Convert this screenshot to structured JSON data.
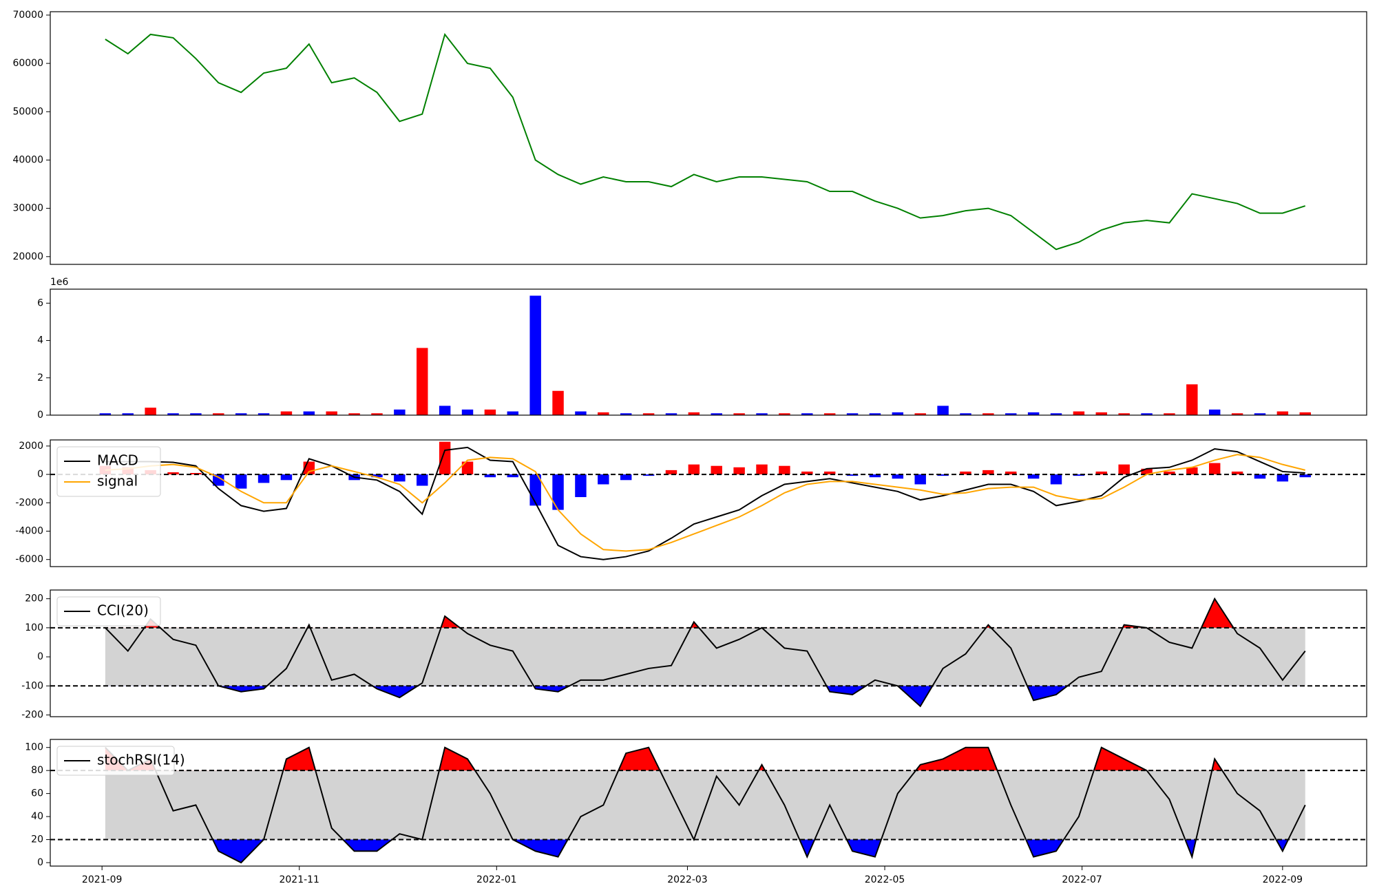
{
  "chart_data": [
    {
      "type": "line",
      "color": "green",
      "ylim": [
        18400,
        70700
      ],
      "yticks": [
        20000,
        30000,
        40000,
        50000,
        60000,
        70000
      ],
      "values": [
        65000,
        62000,
        66000,
        65300,
        61000,
        56000,
        54000,
        58000,
        59000,
        64000,
        56000,
        57000,
        54000,
        48000,
        49500,
        66000,
        60000,
        59000,
        53000,
        40000,
        37000,
        35000,
        36500,
        35500,
        35500,
        34500,
        37000,
        35500,
        36500,
        36500,
        36000,
        35500,
        33500,
        33500,
        31500,
        30000,
        28000,
        28500,
        29500,
        30000,
        28500,
        25000,
        21500,
        23000,
        25500,
        27000,
        27500,
        27000,
        33000,
        32000,
        31000,
        29000,
        29000,
        30500
      ]
    },
    {
      "type": "bar",
      "offset_label": "1e6",
      "ylim": [
        0,
        6.75
      ],
      "yticks": [
        0,
        2,
        4,
        6
      ],
      "values": [
        0.1,
        0.1,
        0.4,
        0.1,
        0.1,
        0.1,
        0.1,
        0.1,
        0.2,
        0.2,
        0.2,
        0.1,
        0.1,
        0.3,
        3.6,
        0.5,
        0.3,
        0.3,
        0.2,
        6.4,
        1.3,
        0.2,
        0.15,
        0.1,
        0.1,
        0.1,
        0.15,
        0.1,
        0.1,
        0.1,
        0.1,
        0.1,
        0.1,
        0.1,
        0.1,
        0.15,
        0.1,
        0.5,
        0.1,
        0.1,
        0.1,
        0.15,
        0.1,
        0.2,
        0.15,
        0.1,
        0.1,
        0.1,
        1.65,
        0.3,
        0.1,
        0.1,
        0.2,
        0.15
      ],
      "colors": [
        "blue",
        "blue",
        "red",
        "blue",
        "blue",
        "red",
        "blue",
        "blue",
        "red",
        "blue",
        "red",
        "red",
        "red",
        "blue",
        "red",
        "blue",
        "blue",
        "red",
        "blue",
        "blue",
        "red",
        "blue",
        "red",
        "blue",
        "red",
        "blue",
        "red",
        "blue",
        "red",
        "blue",
        "red",
        "blue",
        "red",
        "blue",
        "blue",
        "blue",
        "red",
        "blue",
        "blue",
        "red",
        "blue",
        "blue",
        "blue",
        "red",
        "red",
        "red",
        "blue",
        "red",
        "red",
        "blue",
        "red",
        "blue",
        "red",
        "red"
      ]
    },
    {
      "type": "macd",
      "ylim": [
        -6500,
        2430
      ],
      "yticks": [
        -6000,
        -4000,
        -2000,
        0,
        2000
      ],
      "levels": [
        0
      ],
      "series": [
        {
          "name": "MACD",
          "color": "black",
          "values": [
            900,
            900,
            900,
            850,
            600,
            -1000,
            -2200,
            -2600,
            -2400,
            1100,
            600,
            -200,
            -400,
            -1200,
            -2800,
            1700,
            1900,
            1000,
            900,
            -2000,
            -5000,
            -5800,
            -6000,
            -5800,
            -5400,
            -4500,
            -3500,
            -3000,
            -2500,
            -1500,
            -700,
            -500,
            -300,
            -600,
            -900,
            -1200,
            -1800,
            -1500,
            -1100,
            -700,
            -700,
            -1200,
            -2200,
            -1900,
            -1500,
            -200,
            400,
            500,
            1000,
            1800,
            1600,
            900,
            200,
            100
          ]
        },
        {
          "name": "signal",
          "color": "orange",
          "values": [
            300,
            400,
            600,
            700,
            500,
            -200,
            -1200,
            -2000,
            -2000,
            200,
            600,
            200,
            -200,
            -700,
            -2000,
            -600,
            1000,
            1200,
            1100,
            200,
            -2500,
            -4200,
            -5300,
            -5400,
            -5300,
            -4800,
            -4200,
            -3600,
            -3000,
            -2200,
            -1300,
            -700,
            -500,
            -500,
            -700,
            -900,
            -1100,
            -1400,
            -1300,
            -1000,
            -900,
            -900,
            -1500,
            -1800,
            -1700,
            -900,
            0,
            300,
            500,
            1000,
            1400,
            1200,
            700,
            300
          ]
        }
      ],
      "bars": {
        "values": [
          600,
          500,
          300,
          150,
          100,
          -800,
          -1000,
          -600,
          -400,
          900,
          0,
          -400,
          -200,
          -500,
          -800,
          2300,
          900,
          -200,
          -200,
          -2200,
          -2500,
          -1600,
          -700,
          -400,
          -100,
          300,
          700,
          600,
          500,
          700,
          600,
          200,
          200,
          -100,
          -200,
          -300,
          -700,
          -100,
          200,
          300,
          200,
          -300,
          -700,
          -100,
          200,
          700,
          400,
          200,
          500,
          800,
          200,
          -300,
          -500,
          -200
        ],
        "colors": [
          "red",
          "red",
          "red",
          "red",
          "red",
          "blue",
          "blue",
          "blue",
          "blue",
          "red",
          "red",
          "blue",
          "blue",
          "blue",
          "blue",
          "red",
          "red",
          "blue",
          "blue",
          "blue",
          "blue",
          "blue",
          "blue",
          "blue",
          "blue",
          "red",
          "red",
          "red",
          "red",
          "red",
          "red",
          "red",
          "red",
          "blue",
          "blue",
          "blue",
          "blue",
          "blue",
          "red",
          "red",
          "red",
          "blue",
          "blue",
          "blue",
          "red",
          "red",
          "red",
          "red",
          "red",
          "red",
          "red",
          "blue",
          "blue",
          "blue"
        ]
      }
    },
    {
      "type": "oscillator",
      "ylim": [
        -206,
        230
      ],
      "yticks": [
        -200,
        -100,
        0,
        100,
        200
      ],
      "levels": [
        100,
        -100
      ],
      "band_color": "#d3d3d3",
      "above_color": "red",
      "below_color": "blue",
      "series": [
        {
          "name": "CCI(20)",
          "color": "black",
          "values": [
            100,
            20,
            130,
            60,
            40,
            -100,
            -120,
            -110,
            -40,
            110,
            -80,
            -60,
            -110,
            -140,
            -90,
            140,
            80,
            40,
            20,
            -110,
            -120,
            -80,
            -80,
            -60,
            -40,
            -30,
            120,
            30,
            60,
            100,
            30,
            20,
            -120,
            -130,
            -80,
            -100,
            -170,
            -40,
            10,
            110,
            30,
            -150,
            -130,
            -70,
            -50,
            110,
            100,
            50,
            30,
            200,
            80,
            30,
            -80,
            20
          ]
        }
      ]
    },
    {
      "type": "oscillator",
      "ylim": [
        -3,
        107
      ],
      "yticks": [
        0,
        20,
        40,
        60,
        80,
        100
      ],
      "levels": [
        80,
        20
      ],
      "band_color": "#d3d3d3",
      "above_color": "red",
      "below_color": "blue",
      "series": [
        {
          "name": "stochRSI(14)",
          "color": "black",
          "values": [
            100,
            80,
            90,
            45,
            50,
            10,
            0,
            20,
            90,
            100,
            30,
            10,
            10,
            25,
            20,
            100,
            90,
            60,
            20,
            10,
            5,
            40,
            50,
            95,
            100,
            60,
            20,
            75,
            50,
            85,
            50,
            5,
            50,
            10,
            5,
            60,
            85,
            90,
            100,
            100,
            50,
            5,
            10,
            40,
            100,
            90,
            80,
            55,
            5,
            90,
            60,
            45,
            10,
            50
          ]
        }
      ],
      "x": [
        1,
        8,
        15,
        22,
        29,
        36,
        43,
        50,
        57,
        64,
        71,
        78,
        85,
        92,
        99,
        106,
        113,
        120,
        127,
        134,
        141,
        148,
        155,
        162,
        169,
        176,
        183,
        190,
        197,
        204,
        211,
        218,
        225,
        232,
        239,
        246,
        253,
        260,
        267,
        274,
        281,
        288,
        295,
        302,
        309,
        316,
        323,
        330,
        337,
        344,
        351,
        358,
        365,
        372
      ],
      "xlim": [
        -16,
        391
      ],
      "xticks": [
        {
          "value": 0,
          "label": "2021-09"
        },
        {
          "value": 61,
          "label": "2021-11"
        },
        {
          "value": 122,
          "label": "2022-01"
        },
        {
          "value": 181,
          "label": "2022-03"
        },
        {
          "value": 242,
          "label": "2022-05"
        },
        {
          "value": 303,
          "label": "2022-07"
        },
        {
          "value": 365,
          "label": "2022-09"
        }
      ]
    }
  ]
}
